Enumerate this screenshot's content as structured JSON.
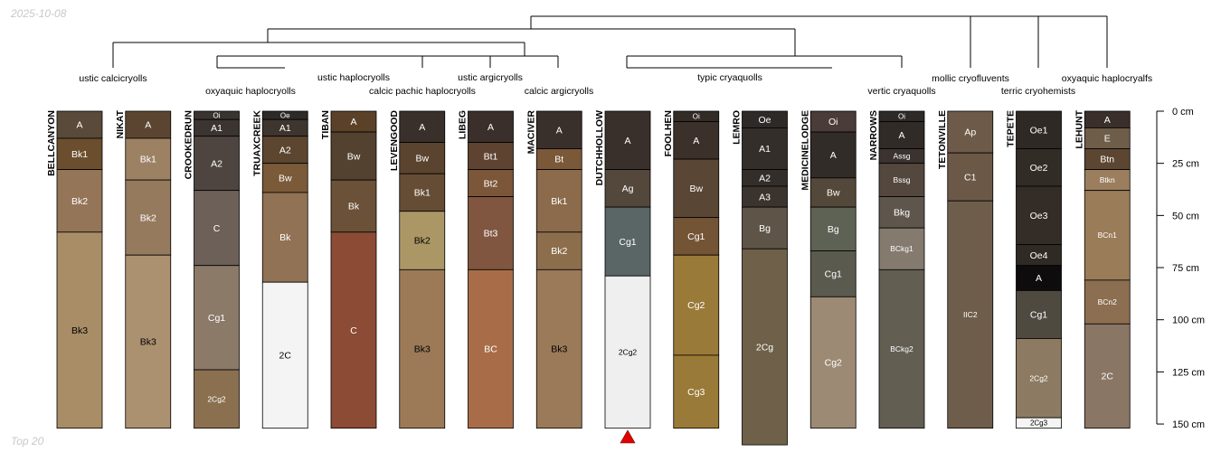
{
  "header_date": "2025-10-08",
  "footer_note": "Top 20",
  "depth_axis": {
    "unit": "cm",
    "ticks": [
      0,
      25,
      50,
      75,
      100,
      125,
      150
    ],
    "tick_labels": [
      "0 cm",
      "25 cm",
      "50 cm",
      "75 cm",
      "100 cm",
      "125 cm",
      "150 cm"
    ]
  },
  "taxa_labels": [
    "ustic calcicryolls",
    "oxyaquic haplocryolls",
    "ustic haplocryolls",
    "calcic pachic haplocryolls",
    "ustic argicryolls",
    "calcic argicryolls",
    "typic cryaquolls",
    "vertic cryaquolls",
    "mollic cryofluvents",
    "terric cryohemists",
    "oxyaquic haplocryalfs"
  ],
  "profiles": [
    {
      "name": "BELLCANYON",
      "horizons": [
        {
          "name": "A",
          "top": 0,
          "bottom": 13,
          "color": "#5a4a3a",
          "label_color": "#ffffff"
        },
        {
          "name": "Bk1",
          "top": 13,
          "bottom": 28,
          "color": "#6b4e2e",
          "label_color": "#ffffff"
        },
        {
          "name": "Bk2",
          "top": 28,
          "bottom": 58,
          "color": "#947558",
          "label_color": "#ffffff"
        },
        {
          "name": "Bk3",
          "top": 58,
          "bottom": 152,
          "color": "#a98d66",
          "label_color": "#000000"
        }
      ]
    },
    {
      "name": "NIKAT",
      "horizons": [
        {
          "name": "A",
          "top": 0,
          "bottom": 13,
          "color": "#5c4530",
          "label_color": "#ffffff"
        },
        {
          "name": "Bk1",
          "top": 13,
          "bottom": 33,
          "color": "#9c8163",
          "label_color": "#ffffff"
        },
        {
          "name": "Bk2",
          "top": 33,
          "bottom": 69,
          "color": "#957a5e",
          "label_color": "#ffffff"
        },
        {
          "name": "Bk3",
          "top": 69,
          "bottom": 152,
          "color": "#ac9171",
          "label_color": "#000000"
        }
      ]
    },
    {
      "name": "CROOKEDRUN",
      "horizons": [
        {
          "name": "Oi",
          "top": 0,
          "bottom": 4,
          "color": "#3a3430",
          "label_color": "#ffffff"
        },
        {
          "name": "A1",
          "top": 4,
          "bottom": 12,
          "color": "#3b3430",
          "label_color": "#ffffff"
        },
        {
          "name": "A2",
          "top": 12,
          "bottom": 38,
          "color": "#4e4540",
          "label_color": "#ffffff"
        },
        {
          "name": "C",
          "top": 38,
          "bottom": 74,
          "color": "#6c6058",
          "label_color": "#ffffff"
        },
        {
          "name": "Cg1",
          "top": 74,
          "bottom": 124,
          "color": "#8b7a68",
          "label_color": "#ffffff"
        },
        {
          "name": "2Cg2",
          "top": 124,
          "bottom": 152,
          "color": "#8b7050",
          "label_color": "#ffffff"
        }
      ]
    },
    {
      "name": "TRUAXCREEK",
      "horizons": [
        {
          "name": "Oe",
          "top": 0,
          "bottom": 4,
          "color": "#2e2a27",
          "label_color": "#ffffff"
        },
        {
          "name": "A1",
          "top": 4,
          "bottom": 12,
          "color": "#3f352f",
          "label_color": "#ffffff"
        },
        {
          "name": "A2",
          "top": 12,
          "bottom": 25,
          "color": "#5c4630",
          "label_color": "#ffffff"
        },
        {
          "name": "Bw",
          "top": 25,
          "bottom": 39,
          "color": "#7a5a38",
          "label_color": "#ffffff"
        },
        {
          "name": "Bk",
          "top": 39,
          "bottom": 82,
          "color": "#927254",
          "label_color": "#ffffff"
        },
        {
          "name": "2C",
          "top": 82,
          "bottom": 152,
          "color": "#f4f4f4",
          "label_color": "#000000"
        }
      ]
    },
    {
      "name": "TIBAN",
      "horizons": [
        {
          "name": "A",
          "top": 0,
          "bottom": 10,
          "color": "#5b4128",
          "label_color": "#ffffff"
        },
        {
          "name": "Bw",
          "top": 10,
          "bottom": 33,
          "color": "#544231",
          "label_color": "#ffffff"
        },
        {
          "name": "Bk",
          "top": 33,
          "bottom": 58,
          "color": "#6a5138",
          "label_color": "#ffffff"
        },
        {
          "name": "C",
          "top": 58,
          "bottom": 152,
          "color": "#8c4b35",
          "label_color": "#ffffff"
        }
      ]
    },
    {
      "name": "LEVENGOOD",
      "horizons": [
        {
          "name": "A",
          "top": 0,
          "bottom": 15,
          "color": "#3a302b",
          "label_color": "#ffffff"
        },
        {
          "name": "Bw",
          "top": 15,
          "bottom": 30,
          "color": "#5a4430",
          "label_color": "#ffffff"
        },
        {
          "name": "Bk1",
          "top": 30,
          "bottom": 48,
          "color": "#654c34",
          "label_color": "#ffffff"
        },
        {
          "name": "Bk2",
          "top": 48,
          "bottom": 76,
          "color": "#ab9766",
          "label_color": "#000000"
        },
        {
          "name": "Bk3",
          "top": 76,
          "bottom": 152,
          "color": "#9c7a58",
          "label_color": "#000000"
        }
      ]
    },
    {
      "name": "LIBEG",
      "horizons": [
        {
          "name": "A",
          "top": 0,
          "bottom": 15,
          "color": "#3a2f2a",
          "label_color": "#ffffff"
        },
        {
          "name": "Bt1",
          "top": 15,
          "bottom": 28,
          "color": "#5e4330",
          "label_color": "#ffffff"
        },
        {
          "name": "Bt2",
          "top": 28,
          "bottom": 41,
          "color": "#7b5638",
          "label_color": "#ffffff"
        },
        {
          "name": "Bt3",
          "top": 41,
          "bottom": 76,
          "color": "#805640",
          "label_color": "#ffffff"
        },
        {
          "name": "BC",
          "top": 76,
          "bottom": 152,
          "color": "#a86d48",
          "label_color": "#ffffff"
        }
      ]
    },
    {
      "name": "MACIVER",
      "horizons": [
        {
          "name": "A",
          "top": 0,
          "bottom": 18,
          "color": "#3a302b",
          "label_color": "#ffffff"
        },
        {
          "name": "Bt",
          "top": 18,
          "bottom": 28,
          "color": "#7a5838",
          "label_color": "#ffffff"
        },
        {
          "name": "Bk1",
          "top": 28,
          "bottom": 58,
          "color": "#8b6b4b",
          "label_color": "#ffffff"
        },
        {
          "name": "Bk2",
          "top": 58,
          "bottom": 76,
          "color": "#8d6e4c",
          "label_color": "#ffffff"
        },
        {
          "name": "Bk3",
          "top": 76,
          "bottom": 152,
          "color": "#9a7a58",
          "label_color": "#000000"
        }
      ]
    },
    {
      "name": "DUTCHHOLLOW",
      "bottom_marker": true,
      "horizons": [
        {
          "name": "A",
          "top": 0,
          "bottom": 28,
          "color": "#3a302b",
          "label_color": "#ffffff"
        },
        {
          "name": "Ag",
          "top": 28,
          "bottom": 46,
          "color": "#54473c",
          "label_color": "#ffffff"
        },
        {
          "name": "Cg1",
          "top": 46,
          "bottom": 79,
          "color": "#5a6566",
          "label_color": "#ffffff"
        },
        {
          "name": "2Cg2",
          "top": 79,
          "bottom": 152,
          "color": "#efefef",
          "label_color": "#000000"
        }
      ]
    },
    {
      "name": "FOOLHEN",
      "horizons": [
        {
          "name": "Oi",
          "top": 0,
          "bottom": 5,
          "color": "#332b26",
          "label_color": "#ffffff"
        },
        {
          "name": "A",
          "top": 5,
          "bottom": 23,
          "color": "#3b302a",
          "label_color": "#ffffff"
        },
        {
          "name": "Bw",
          "top": 23,
          "bottom": 51,
          "color": "#5a4634",
          "label_color": "#ffffff"
        },
        {
          "name": "Cg1",
          "top": 51,
          "bottom": 69,
          "color": "#735535",
          "label_color": "#ffffff"
        },
        {
          "name": "Cg2",
          "top": 69,
          "bottom": 117,
          "color": "#9a7a38",
          "label_color": "#ffffff"
        },
        {
          "name": "Cg3",
          "top": 117,
          "bottom": 152,
          "color": "#9a7a38",
          "label_color": "#ffffff"
        }
      ]
    },
    {
      "name": "LEMRO",
      "horizons": [
        {
          "name": "Oe",
          "top": 0,
          "bottom": 8,
          "color": "#2e2a27",
          "label_color": "#ffffff"
        },
        {
          "name": "A1",
          "top": 8,
          "bottom": 28,
          "color": "#332e2a",
          "label_color": "#ffffff"
        },
        {
          "name": "A2",
          "top": 28,
          "bottom": 36,
          "color": "#332e2a",
          "label_color": "#ffffff"
        },
        {
          "name": "A3",
          "top": 36,
          "bottom": 46,
          "color": "#3b332d",
          "label_color": "#ffffff"
        },
        {
          "name": "Bg",
          "top": 46,
          "bottom": 66,
          "color": "#5e5448",
          "label_color": "#ffffff"
        },
        {
          "name": "2Cg",
          "top": 66,
          "bottom": 160,
          "color": "#6e6049",
          "label_color": "#ffffff"
        }
      ]
    },
    {
      "name": "MEDICINELODGE",
      "horizons": [
        {
          "name": "Oi",
          "top": 0,
          "bottom": 10,
          "color": "#4a3c38",
          "label_color": "#ffffff"
        },
        {
          "name": "A",
          "top": 10,
          "bottom": 32,
          "color": "#322c28",
          "label_color": "#ffffff"
        },
        {
          "name": "Bw",
          "top": 32,
          "bottom": 46,
          "color": "#54483a",
          "label_color": "#ffffff"
        },
        {
          "name": "Bg",
          "top": 46,
          "bottom": 67,
          "color": "#5e6255",
          "label_color": "#ffffff"
        },
        {
          "name": "Cg1",
          "top": 67,
          "bottom": 89,
          "color": "#5a5a4e",
          "label_color": "#ffffff"
        },
        {
          "name": "Cg2",
          "top": 89,
          "bottom": 152,
          "color": "#9c8a75",
          "label_color": "#ffffff"
        }
      ]
    },
    {
      "name": "NARROWS",
      "horizons": [
        {
          "name": "Oi",
          "top": 0,
          "bottom": 5,
          "color": "#2e2a27",
          "label_color": "#ffffff"
        },
        {
          "name": "A",
          "top": 5,
          "bottom": 18,
          "color": "#302b27",
          "label_color": "#ffffff"
        },
        {
          "name": "Assg",
          "top": 18,
          "bottom": 25,
          "color": "#3b3330",
          "label_color": "#ffffff"
        },
        {
          "name": "Bssg",
          "top": 25,
          "bottom": 41,
          "color": "#54483e",
          "label_color": "#ffffff"
        },
        {
          "name": "Bkg",
          "top": 41,
          "bottom": 56,
          "color": "#5e564c",
          "label_color": "#ffffff"
        },
        {
          "name": "BCkg1",
          "top": 56,
          "bottom": 76,
          "color": "#847a6e",
          "label_color": "#ffffff"
        },
        {
          "name": "BCkg2",
          "top": 76,
          "bottom": 152,
          "color": "#625e52",
          "label_color": "#ffffff"
        }
      ]
    },
    {
      "name": "TETONVILLE",
      "horizons": [
        {
          "name": "Ap",
          "top": 0,
          "bottom": 20,
          "color": "#6e5a48",
          "label_color": "#ffffff"
        },
        {
          "name": "C1",
          "top": 20,
          "bottom": 43,
          "color": "#6b5846",
          "label_color": "#ffffff"
        },
        {
          "name": "IIC2",
          "top": 43,
          "bottom": 152,
          "color": "#6f5d4b",
          "label_color": "#ffffff"
        }
      ]
    },
    {
      "name": "TEPETE",
      "horizons": [
        {
          "name": "Oe1",
          "top": 0,
          "bottom": 18,
          "color": "#2e2925",
          "label_color": "#ffffff"
        },
        {
          "name": "Oe2",
          "top": 18,
          "bottom": 36,
          "color": "#322c27",
          "label_color": "#ffffff"
        },
        {
          "name": "Oe3",
          "top": 36,
          "bottom": 64,
          "color": "#332c27",
          "label_color": "#ffffff"
        },
        {
          "name": "Oe4",
          "top": 64,
          "bottom": 74,
          "color": "#302a25",
          "label_color": "#ffffff"
        },
        {
          "name": "A",
          "top": 74,
          "bottom": 86,
          "color": "#0e0c0c",
          "label_color": "#ffffff"
        },
        {
          "name": "Cg1",
          "top": 86,
          "bottom": 109,
          "color": "#4e4a40",
          "label_color": "#ffffff"
        },
        {
          "name": "2Cg2",
          "top": 109,
          "bottom": 147,
          "color": "#8c7b62",
          "label_color": "#ffffff"
        },
        {
          "name": "2Cg3",
          "top": 147,
          "bottom": 152,
          "color": "#f4f4f4",
          "label_color": "#000000"
        }
      ]
    },
    {
      "name": "LEHUNT",
      "horizons": [
        {
          "name": "A",
          "top": 0,
          "bottom": 8,
          "color": "#3a2f2a",
          "label_color": "#ffffff"
        },
        {
          "name": "E",
          "top": 8,
          "bottom": 18,
          "color": "#6e5d48",
          "label_color": "#ffffff"
        },
        {
          "name": "Btn",
          "top": 18,
          "bottom": 28,
          "color": "#5c4632",
          "label_color": "#ffffff"
        },
        {
          "name": "Btkn",
          "top": 28,
          "bottom": 38,
          "color": "#9a7e5e",
          "label_color": "#ffffff"
        },
        {
          "name": "BCn1",
          "top": 38,
          "bottom": 81,
          "color": "#9a7c58",
          "label_color": "#ffffff"
        },
        {
          "name": "BCn2",
          "top": 81,
          "bottom": 102,
          "color": "#8c6e50",
          "label_color": "#ffffff"
        },
        {
          "name": "2C",
          "top": 102,
          "bottom": 152,
          "color": "#8a7664",
          "label_color": "#ffffff"
        }
      ]
    }
  ]
}
